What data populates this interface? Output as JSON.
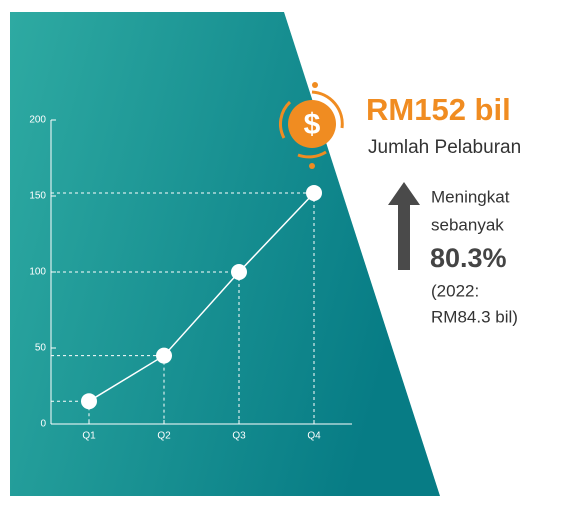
{
  "chart_data": {
    "type": "line",
    "categories": [
      "Q1",
      "Q2",
      "Q3",
      "Q4"
    ],
    "values": [
      15,
      45,
      100,
      152
    ],
    "color": "#ffffff",
    "ylim": [
      0,
      200
    ],
    "yticks": [
      0,
      50,
      100,
      150,
      200
    ],
    "guides": true
  },
  "highlight": {
    "icon": "$",
    "amount": "RM152 bil",
    "label": "Jumlah Pelaburan",
    "change_lines": [
      "Meningkat",
      "sebanyak"
    ],
    "change": "80.3%",
    "comparison_lines": [
      "(2022:",
      "RM84.3 bil)"
    ]
  }
}
